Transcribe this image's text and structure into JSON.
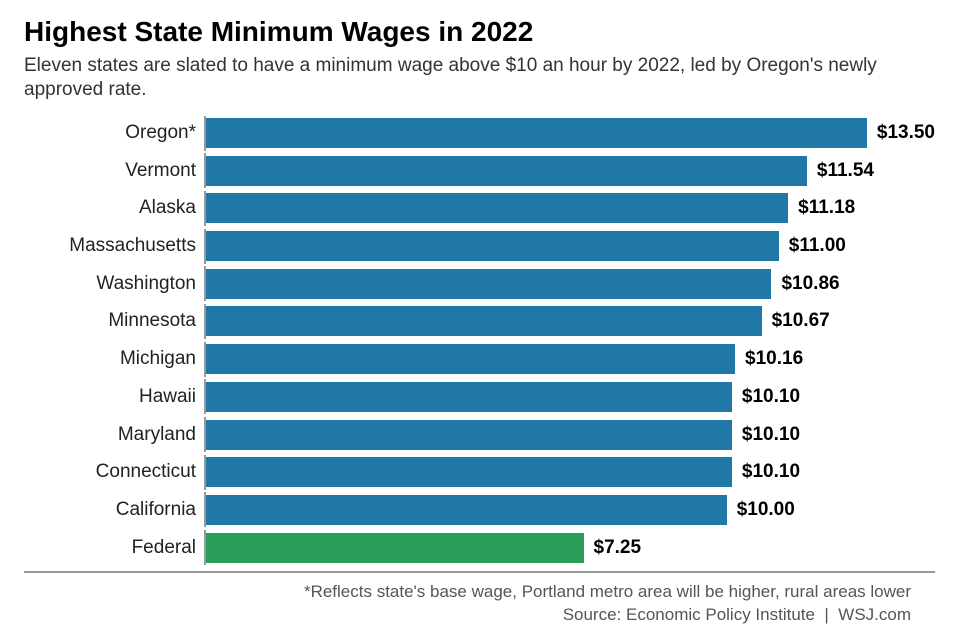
{
  "title": "Highest State Minimum Wages in 2022",
  "subtitle": "Eleven states are slated to have a minimum wage above $10 an hour by 2022, led by Oregon's newly approved rate.",
  "chart": {
    "type": "bar",
    "orientation": "horizontal",
    "xmax": 14.0,
    "bar_default_color": "#1f78a5",
    "bar_alt_color": "#2a9d58",
    "background_color": "#ffffff",
    "axis_color": "#999999",
    "label_fontsize": 19,
    "value_fontsize": 19,
    "value_fontweight": "bold",
    "rows": [
      {
        "label": "Oregon*",
        "value": 13.5,
        "display": "$13.50",
        "color": "#1f78a5"
      },
      {
        "label": "Vermont",
        "value": 11.54,
        "display": "$11.54",
        "color": "#1f78a5"
      },
      {
        "label": "Alaska",
        "value": 11.18,
        "display": "$11.18",
        "color": "#1f78a5"
      },
      {
        "label": "Massachusetts",
        "value": 11.0,
        "display": "$11.00",
        "color": "#1f78a5"
      },
      {
        "label": "Washington",
        "value": 10.86,
        "display": "$10.86",
        "color": "#1f78a5"
      },
      {
        "label": "Minnesota",
        "value": 10.67,
        "display": "$10.67",
        "color": "#1f78a5"
      },
      {
        "label": "Michigan",
        "value": 10.16,
        "display": "$10.16",
        "color": "#1f78a5"
      },
      {
        "label": "Hawaii",
        "value": 10.1,
        "display": "$10.10",
        "color": "#1f78a5"
      },
      {
        "label": "Maryland",
        "value": 10.1,
        "display": "$10.10",
        "color": "#1f78a5"
      },
      {
        "label": "Connecticut",
        "value": 10.1,
        "display": "$10.10",
        "color": "#1f78a5"
      },
      {
        "label": "California",
        "value": 10.0,
        "display": "$10.00",
        "color": "#1f78a5"
      },
      {
        "label": "Federal",
        "value": 7.25,
        "display": "$7.25",
        "color": "#2a9d58"
      }
    ]
  },
  "footnote_line1": "*Reflects state's base wage, Portland metro area will be higher, rural areas lower",
  "footnote_line2": "Source: Economic Policy Institute  |  WSJ.com"
}
